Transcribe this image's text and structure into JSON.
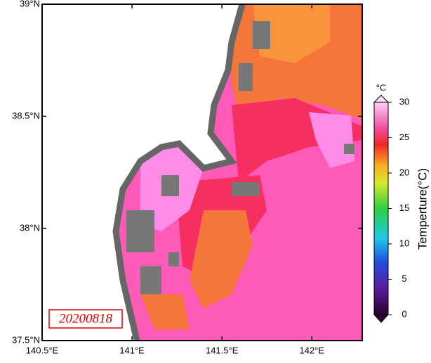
{
  "map": {
    "date_label": "20200818",
    "xlim": [
      140.5,
      142.28
    ],
    "ylim": [
      37.5,
      39.0
    ],
    "lon_ticks": [
      {
        "value": 140.5,
        "label": "140.5°E"
      },
      {
        "value": 141,
        "label": "141°E"
      },
      {
        "value": 141.5,
        "label": "141.5°E"
      },
      {
        "value": 142,
        "label": "142°E"
      }
    ],
    "lat_ticks": [
      {
        "value": 37.5,
        "label": "37.5°N"
      },
      {
        "value": 38,
        "label": "38°N"
      },
      {
        "value": 38.5,
        "label": "38.5°N"
      },
      {
        "value": 39,
        "label": "39°N"
      }
    ],
    "colorbar": {
      "unit": "°C",
      "label": "Temperture(°C)",
      "lim": [
        0,
        30
      ],
      "ticks": [
        0,
        5,
        10,
        15,
        20,
        25,
        30
      ]
    }
  }
}
